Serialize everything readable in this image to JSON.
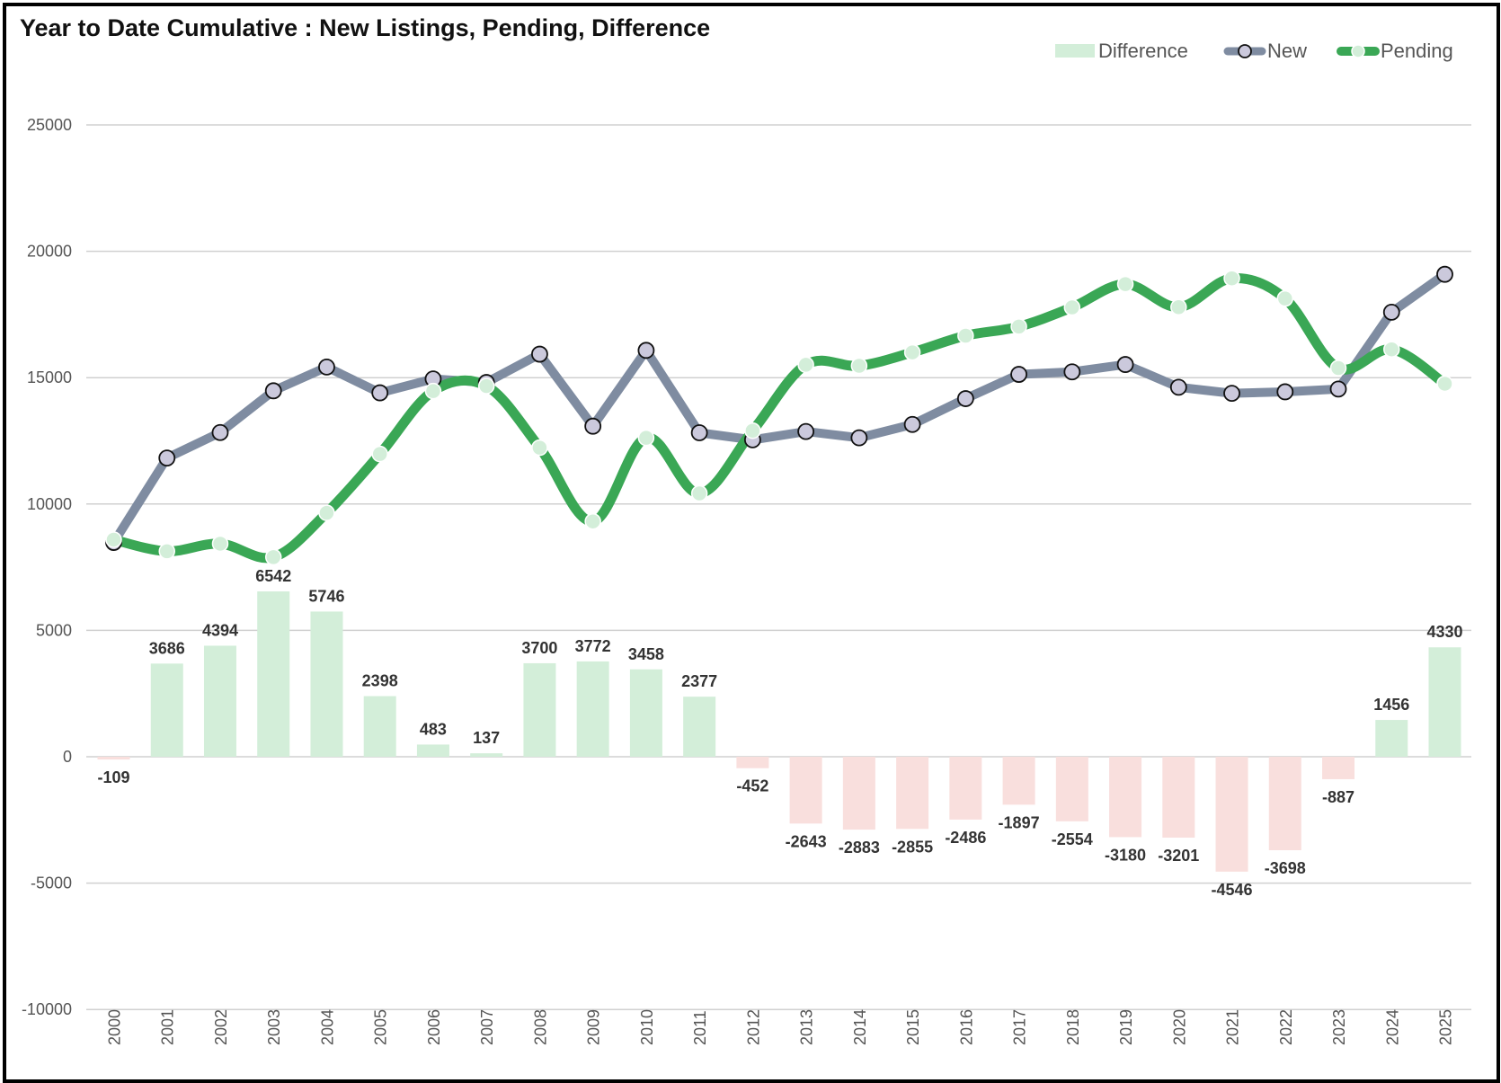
{
  "chart_data": {
    "type": "bar+line",
    "title": "Year to Date Cumulative : New Listings, Pending, Difference",
    "categories": [
      "2000",
      "2001",
      "2002",
      "2003",
      "2004",
      "2005",
      "2006",
      "2007",
      "2008",
      "2009",
      "2010",
      "2011",
      "2012",
      "2013",
      "2014",
      "2015",
      "2016",
      "2017",
      "2018",
      "2019",
      "2020",
      "2021",
      "2022",
      "2023",
      "2024",
      "2025"
    ],
    "series": [
      {
        "name": "Difference",
        "kind": "bar",
        "values": [
          -109,
          3686,
          4394,
          6542,
          5746,
          2398,
          483,
          137,
          3700,
          3772,
          3458,
          2377,
          -452,
          -2643,
          -2883,
          -2855,
          -2486,
          -1897,
          -2554,
          -3180,
          -3201,
          -4546,
          -3698,
          -887,
          1456,
          4330
        ],
        "color_positive": "#d3eed9",
        "color_negative": "#f9dfdd"
      },
      {
        "name": "New",
        "kind": "line",
        "values": [
          8480,
          11820,
          12830,
          14480,
          15420,
          14400,
          14950,
          14810,
          15930,
          13080,
          16080,
          12820,
          12540,
          12870,
          12620,
          13150,
          14170,
          15130,
          15230,
          15520,
          14620,
          14380,
          14440,
          14550,
          17590,
          19090
        ],
        "color": "#7f8ca1",
        "marker_fill": "#cbc9dc",
        "marker_stroke": "#111111"
      },
      {
        "name": "Pending",
        "kind": "line",
        "values": [
          8590,
          8130,
          8430,
          7900,
          9650,
          11980,
          14470,
          14670,
          12230,
          9310,
          12620,
          10420,
          12900,
          15510,
          15470,
          16000,
          16660,
          17020,
          17780,
          18700,
          17790,
          18930,
          18130,
          15380,
          16120,
          14760
        ],
        "color": "#3aa755",
        "marker_fill": "#d3eed9",
        "marker_stroke": "#ffffff"
      }
    ],
    "y_ticks": [
      25000,
      20000,
      15000,
      10000,
      5000,
      0,
      -5000,
      -10000
    ],
    "ylim": [
      -10000,
      25000
    ],
    "grid": true,
    "legend": "top-right",
    "legend_labels": [
      "Difference",
      "New",
      "Pending"
    ]
  }
}
